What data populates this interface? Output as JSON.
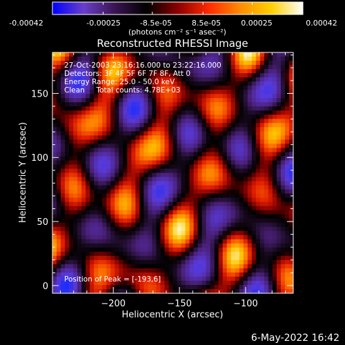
{
  "colorbar": {
    "ticks": [
      "-0.00042",
      "-0.00025",
      "-8.5e-05",
      "8.5e-05",
      "0.00025",
      "0.00042"
    ],
    "tick_values": [
      -0.00042,
      -0.00025,
      -8.5e-05,
      8.5e-05,
      0.00025,
      0.00042
    ],
    "range": [
      -0.00042,
      0.00042
    ],
    "units_label": "(photons cm⁻² s⁻¹ asec⁻²)",
    "palette": [
      "#0000ff",
      "#6a3fc9",
      "#3a1450",
      "#000000",
      "#8b0000",
      "#ff2a00",
      "#ff8c00",
      "#ffd000",
      "#ffffff"
    ]
  },
  "chart_data": {
    "type": "heatmap",
    "title": "Reconstructed RHESSI Image",
    "xlabel": "Heliocentric X (arcsec)",
    "ylabel": "Heliocentric Y (arcsec)",
    "xlim": [
      -246,
      -64
    ],
    "ylim": [
      -6,
      182
    ],
    "xticks": [
      -200,
      -150,
      -100
    ],
    "xtick_labels": [
      "−200",
      "−150",
      "−100"
    ],
    "yticks": [
      0,
      50,
      100,
      150
    ],
    "ytick_labels": [
      "0",
      "50",
      "100",
      "150"
    ],
    "annotations": [
      "27-Oct-2003 23:16:16.000 to 23:22:16.000",
      "Detectors: 3F 4F 5F 6F 7F 8F, Att 0",
      "Energy Range: 25.0 - 50.0 keV",
      "Clean     Total counts: 4.78E+03"
    ],
    "position_label": "Position of Peak = [-193,6]",
    "peak_position": [
      -193,
      6
    ]
  },
  "footer": {
    "timestamp": "6-May-2022 16:42"
  }
}
